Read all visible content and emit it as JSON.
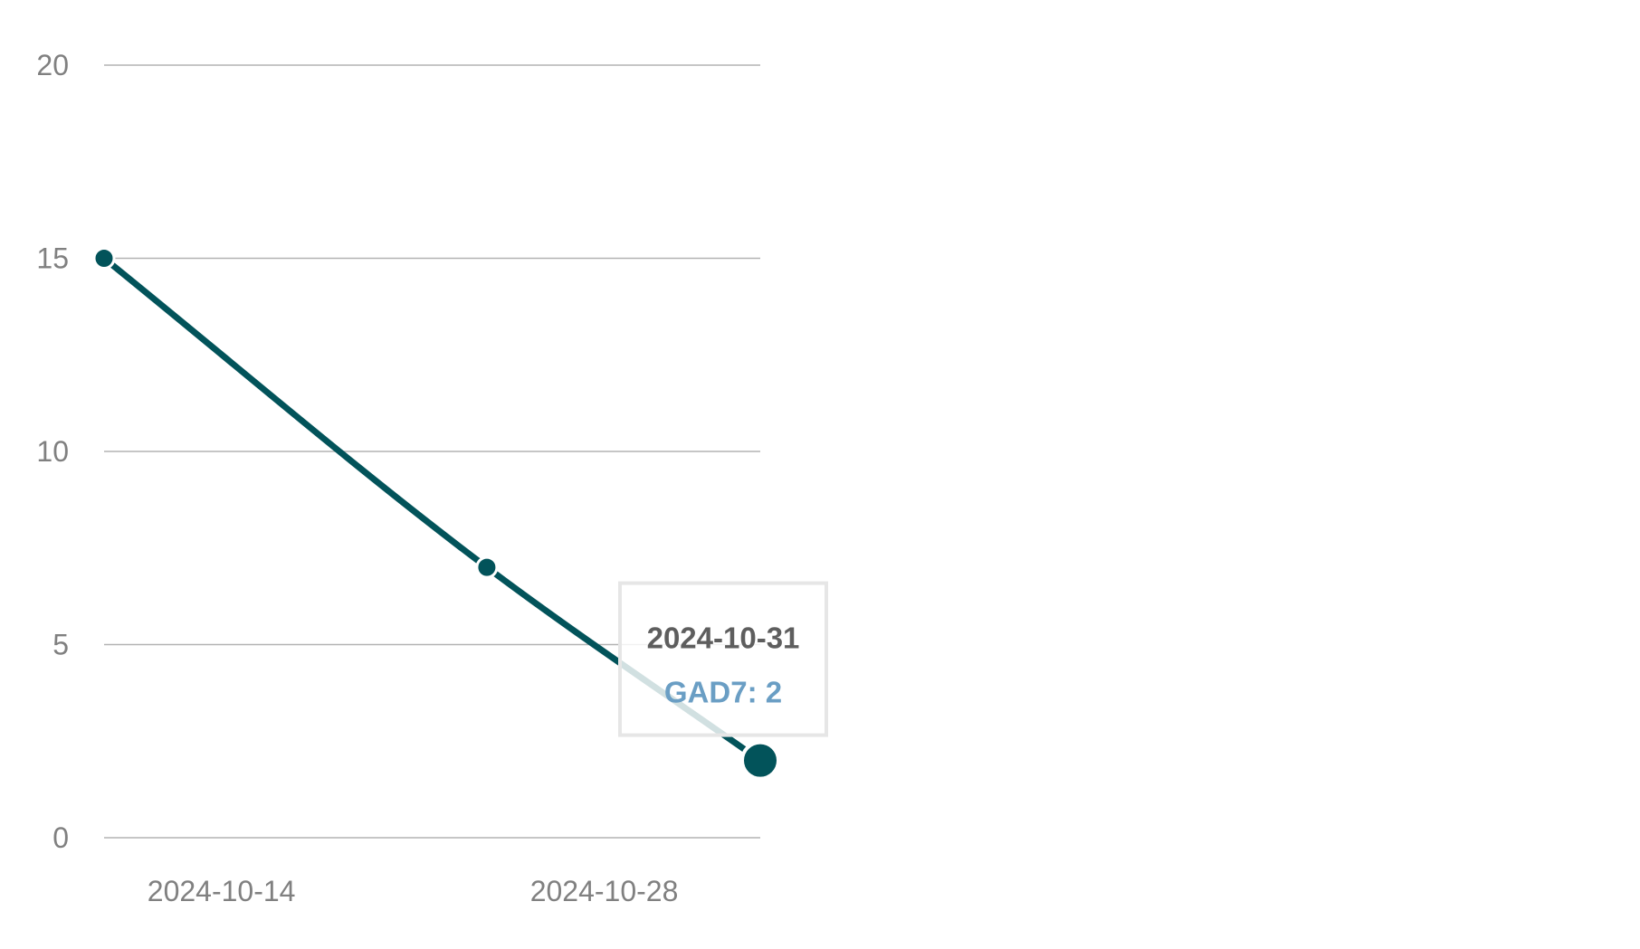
{
  "chart_data": {
    "type": "line",
    "x": [
      "2024-10-07",
      "2024-10-21",
      "2024-10-31"
    ],
    "series": [
      {
        "name": "GAD7",
        "values": [
          15,
          7,
          2
        ]
      }
    ],
    "x_ticks": [
      "2024-10-14",
      "2024-10-28"
    ],
    "y_ticks": [
      0,
      5,
      10,
      15,
      20
    ],
    "ylim": [
      0,
      20
    ],
    "title": "",
    "xlabel": "",
    "ylabel": "",
    "grid": true,
    "line_color": "#02535a",
    "tooltip": {
      "title": "2024-10-31",
      "label": "GAD7: 2",
      "label_color": "#6a9ec4"
    }
  }
}
